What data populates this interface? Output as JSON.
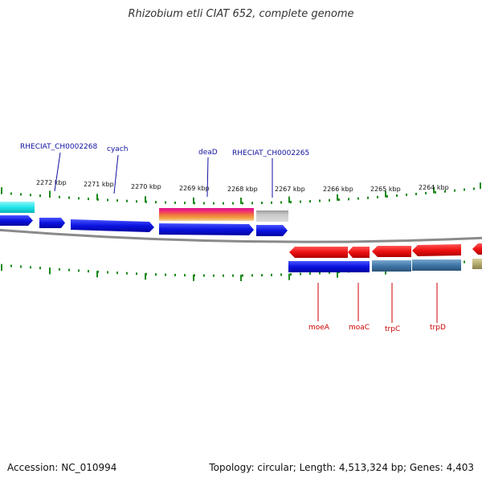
{
  "title": "Rhizobium etli CIAT 652, complete genome",
  "footer": {
    "accession": "Accession: NC_010994",
    "topology": "Topology: circular; Length: 4,513,324 bp; Genes: 4,403"
  },
  "scale_labels": [
    "2272 kbp",
    "2271 kbp",
    "2270 kbp",
    "2269 kbp",
    "2268 kbp",
    "2267 kbp",
    "2266 kbp",
    "2265 kbp",
    "2264 kbp"
  ],
  "top_gene_labels": [
    "RHECIAT_CH0002268",
    "cyach",
    "deaD",
    "RHECIAT_CH0002265"
  ],
  "bottom_gene_labels": [
    "moeA",
    "moaC",
    "trpC",
    "trpD"
  ],
  "colors": {
    "forward_cds": "#0b14e0",
    "cyan_feature": "#1fe6ea",
    "reverse_cds": "#ee1111",
    "steel_feature": "#3f77a8",
    "khaki_feature": "#b4ab6c",
    "tick_green": "#1d8a1d",
    "backbone": "#8a8a8a",
    "top_label": "#1010a0",
    "bottom_label": "#cc0000"
  }
}
